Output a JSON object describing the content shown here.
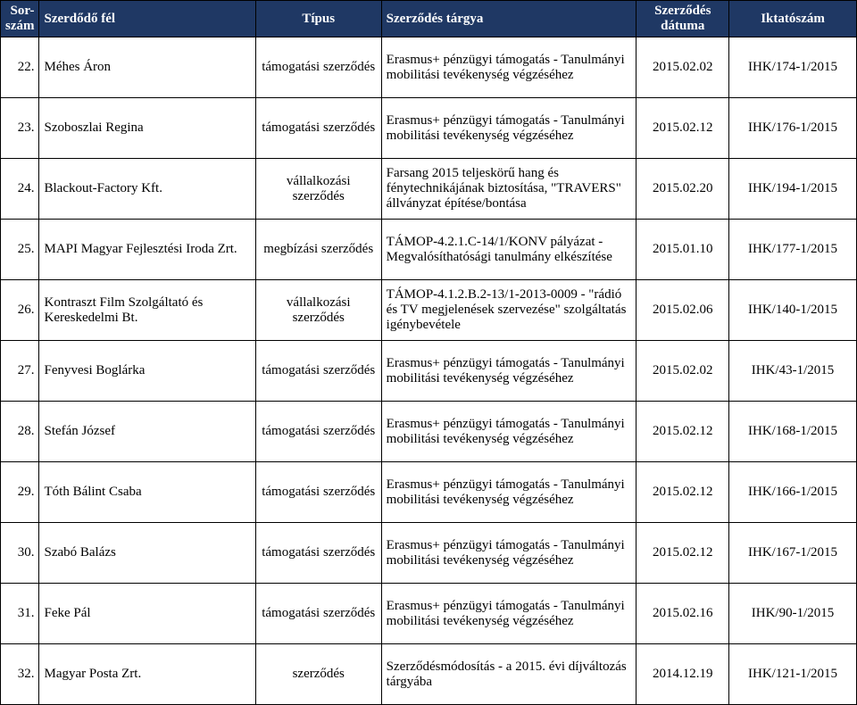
{
  "header": {
    "num": "Sor-szám",
    "party": "Szerdődő fél",
    "type": "Típus",
    "subject": "Szerződés tárgya",
    "date": "Szerződés dátuma",
    "ref": "Iktatószám"
  },
  "rows": [
    {
      "num": "22.",
      "party": "Méhes Áron",
      "type": "támogatási szerződés",
      "subject": "Erasmus+ pénzügyi támogatás - Tanulmányi mobilitási tevékenység végzéséhez",
      "date": "2015.02.02",
      "ref": "IHK/174-1/2015"
    },
    {
      "num": "23.",
      "party": "Szoboszlai Regina",
      "type": "támogatási szerződés",
      "subject": "Erasmus+ pénzügyi támogatás - Tanulmányi mobilitási tevékenység végzéséhez",
      "date": "2015.02.12",
      "ref": "IHK/176-1/2015"
    },
    {
      "num": "24.",
      "party": "Blackout-Factory Kft.",
      "type": "vállalkozási szerződés",
      "subject": "Farsang 2015  teljeskörű hang és fénytechnikájának biztosítása, \"TRAVERS\" állványzat építése/bontása",
      "date": "2015.02.20",
      "ref": "IHK/194-1/2015"
    },
    {
      "num": "25.",
      "party": "MAPI Magyar Fejlesztési Iroda Zrt.",
      "type": "megbízási szerződés",
      "subject": "TÁMOP-4.2.1.C-14/1/KONV pályázat - Megvalósíthatósági tanulmány elkészítése",
      "date": "2015.01.10",
      "ref": "IHK/177-1/2015"
    },
    {
      "num": "26.",
      "party": "Kontraszt Film Szolgáltató és Kereskedelmi Bt.",
      "type": "vállalkozási szerződés",
      "subject": "TÁMOP-4.1.2.B.2-13/1-2013-0009 - \"rádió és TV megjelenések szervezése\" szolgáltatás igénybevétele",
      "date": "2015.02.06",
      "ref": "IHK/140-1/2015"
    },
    {
      "num": "27.",
      "party": "Fenyvesi Boglárka",
      "type": "támogatási szerződés",
      "subject": "Erasmus+ pénzügyi támogatás - Tanulmányi mobilitási tevékenység végzéséhez",
      "date": "2015.02.02",
      "ref": "IHK/43-1/2015"
    },
    {
      "num": "28.",
      "party": "Stefán József",
      "type": "támogatási szerződés",
      "subject": "Erasmus+ pénzügyi támogatás - Tanulmányi mobilitási tevékenység végzéséhez",
      "date": "2015.02.12",
      "ref": "IHK/168-1/2015"
    },
    {
      "num": "29.",
      "party": "Tóth Bálint Csaba",
      "type": "támogatási szerződés",
      "subject": "Erasmus+ pénzügyi támogatás - Tanulmányi mobilitási tevékenység végzéséhez",
      "date": "2015.02.12",
      "ref": "IHK/166-1/2015"
    },
    {
      "num": "30.",
      "party": "Szabó Balázs",
      "type": "támogatási szerződés",
      "subject": "Erasmus+ pénzügyi támogatás - Tanulmányi mobilitási tevékenység végzéséhez",
      "date": "2015.02.12",
      "ref": "IHK/167-1/2015"
    },
    {
      "num": "31.",
      "party": "Feke Pál",
      "type": "támogatási szerződés",
      "subject": "Erasmus+ pénzügyi támogatás - Tanulmányi mobilitási tevékenység végzéséhez",
      "date": "2015.02.16",
      "ref": "IHK/90-1/2015"
    },
    {
      "num": "32.",
      "party": "Magyar Posta Zrt.",
      "type": "szerződés",
      "subject": "Szerződésmódosítás - a 2015. évi díjváltozás tárgyába",
      "date": "2014.12.19",
      "ref": "IHK/121-1/2015"
    }
  ],
  "layout": {
    "header_bg": "#1f3864",
    "header_fg": "#ffffff"
  }
}
